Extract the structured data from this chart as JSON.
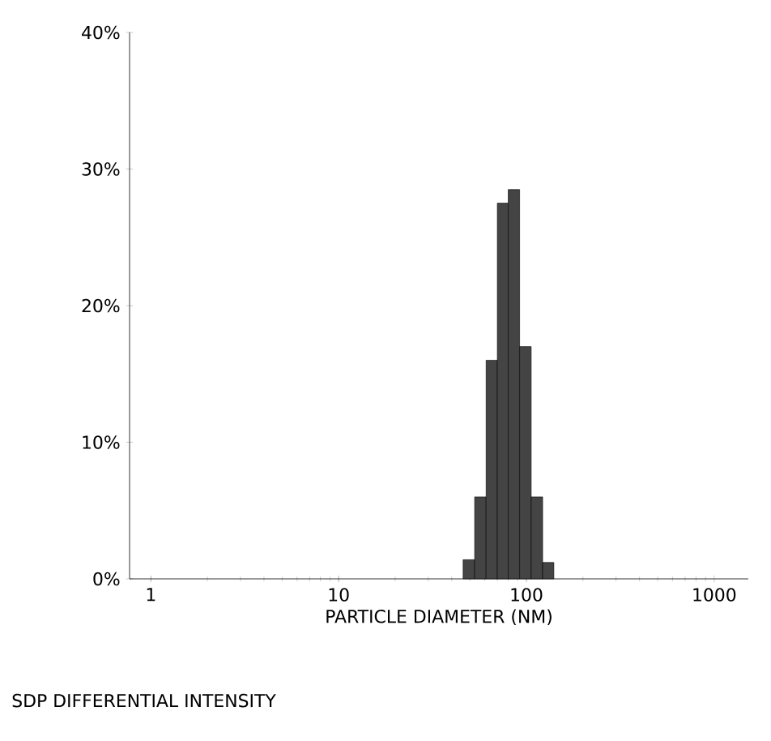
{
  "chart_data": {
    "type": "histogram",
    "xlabel": "PARTICLE DIAMETER (NM)",
    "annotations": [
      "SDP DIFFERENTIAL INTENSITY"
    ],
    "bins": [
      46,
      53,
      61,
      70,
      80,
      92,
      106,
      122,
      140
    ],
    "values": [
      1.4,
      6,
      16,
      27.5,
      28.5,
      17,
      6,
      1.2
    ],
    "color": "#444444",
    "log": "x",
    "xlim": [
      0.77,
      1520
    ],
    "xticks": [
      1,
      10,
      100,
      1000
    ],
    "ylim": [
      0,
      40
    ],
    "yticks": [
      {
        "value": 0,
        "label": "0%"
      },
      {
        "value": 10,
        "label": "10%"
      },
      {
        "value": 20,
        "label": "20%"
      },
      {
        "value": 30,
        "label": "30%"
      },
      {
        "value": 40,
        "label": "40%"
      }
    ]
  }
}
